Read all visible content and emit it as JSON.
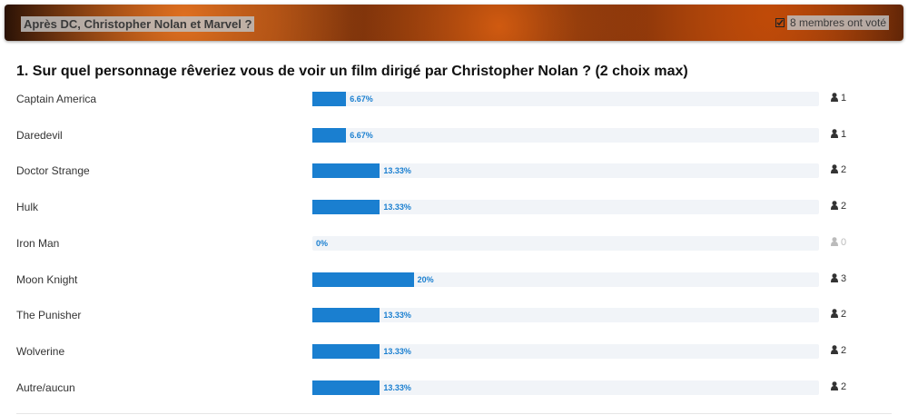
{
  "header": {
    "title": "Après DC, Christopher Nolan et Marvel ?",
    "voters": "8 membres ont voté"
  },
  "question": "1. Sur quel personnage rêveriez vous de voir un film dirigé par Christopher Nolan ? (2 choix max)",
  "options": [
    {
      "label": "Captain America",
      "percent": 6.67,
      "percent_label": "6.67%",
      "votes": 1
    },
    {
      "label": "Daredevil",
      "percent": 6.67,
      "percent_label": "6.67%",
      "votes": 1
    },
    {
      "label": "Doctor Strange",
      "percent": 13.33,
      "percent_label": "13.33%",
      "votes": 2
    },
    {
      "label": "Hulk",
      "percent": 13.33,
      "percent_label": "13.33%",
      "votes": 2
    },
    {
      "label": "Iron Man",
      "percent": 0,
      "percent_label": "0%",
      "votes": 0
    },
    {
      "label": "Moon Knight",
      "percent": 20,
      "percent_label": "20%",
      "votes": 3
    },
    {
      "label": "The Punisher",
      "percent": 13.33,
      "percent_label": "13.33%",
      "votes": 2
    },
    {
      "label": "Wolverine",
      "percent": 13.33,
      "percent_label": "13.33%",
      "votes": 2
    },
    {
      "label": "Autre/aucun",
      "percent": 13.33,
      "percent_label": "13.33%",
      "votes": 2
    }
  ]
}
